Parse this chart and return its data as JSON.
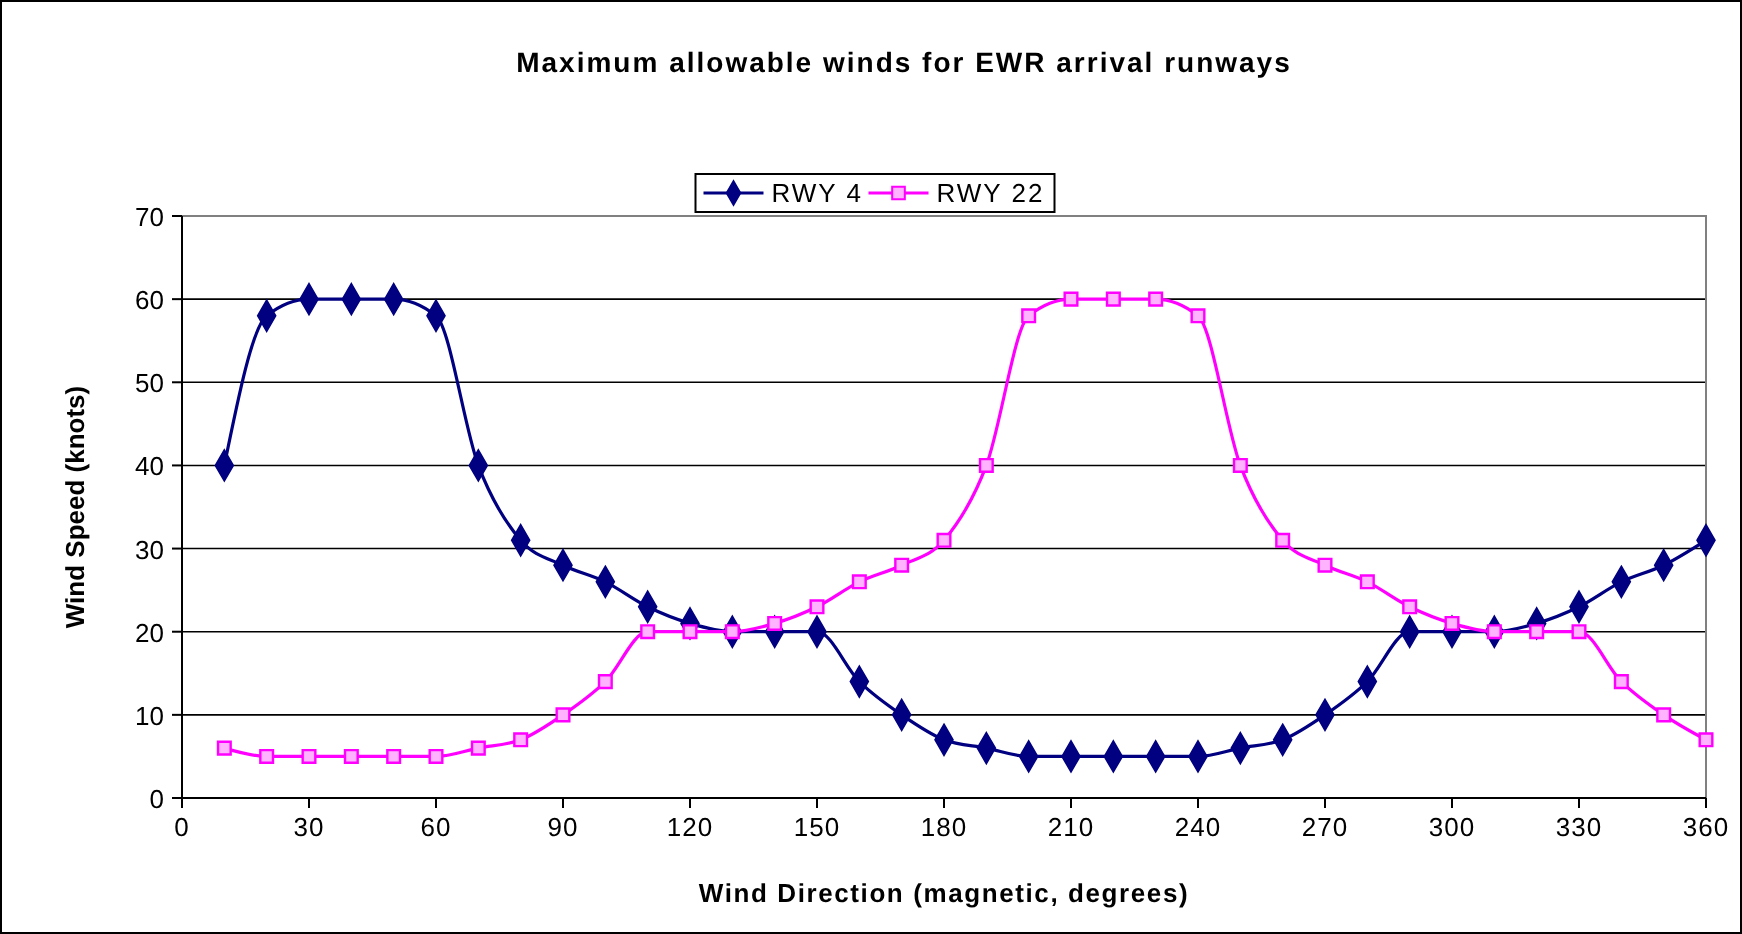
{
  "chart_data": {
    "type": "line",
    "title": "Maximum allowable winds for EWR arrival runways",
    "xlabel": "Wind Direction (magnetic, degrees)",
    "ylabel": "Wind Speed (knots)",
    "x": [
      10,
      20,
      30,
      40,
      50,
      60,
      70,
      80,
      90,
      100,
      110,
      120,
      130,
      140,
      150,
      160,
      170,
      180,
      190,
      200,
      210,
      220,
      230,
      240,
      250,
      260,
      270,
      280,
      290,
      300,
      310,
      320,
      330,
      340,
      350,
      360
    ],
    "series": [
      {
        "name": "RWY 4",
        "color": "#000080",
        "marker": "diamond",
        "values": [
          40,
          58,
          60,
          60,
          60,
          58,
          40,
          31,
          28,
          26,
          23,
          21,
          20,
          20,
          20,
          14,
          10,
          7,
          6,
          5,
          5,
          5,
          5,
          5,
          6,
          7,
          10,
          14,
          20,
          20,
          20,
          21,
          23,
          26,
          28,
          31
        ]
      },
      {
        "name": "RWY 22",
        "color": "#ff00ff",
        "marker": "square",
        "values": [
          6,
          5,
          5,
          5,
          5,
          5,
          6,
          7,
          10,
          14,
          20,
          20,
          20,
          21,
          23,
          26,
          28,
          31,
          40,
          58,
          60,
          60,
          60,
          58,
          40,
          31,
          28,
          26,
          23,
          21,
          20,
          20,
          20,
          14,
          10,
          7
        ]
      }
    ],
    "xlim": [
      0,
      360
    ],
    "xticks": [
      0,
      30,
      60,
      90,
      120,
      150,
      180,
      210,
      240,
      270,
      300,
      330,
      360
    ],
    "ylim": [
      0,
      70
    ],
    "yticks": [
      0,
      10,
      20,
      30,
      40,
      50,
      60,
      70
    ],
    "grid": "y",
    "legend": "top",
    "line_style": "solid"
  }
}
